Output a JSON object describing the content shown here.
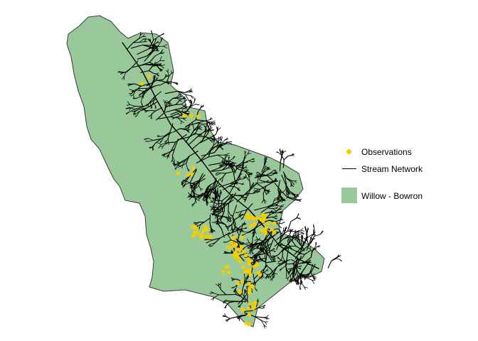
{
  "legend": {
    "observations": {
      "label": "Observations",
      "color": "#f5cc00"
    },
    "stream_network": {
      "label": "Stream Network",
      "color": "#000000"
    },
    "watershed": {
      "label": "Willow - Bowron",
      "color": "#99c99a"
    }
  },
  "colors": {
    "watershed_fill": "#99c99a",
    "stream": "#000000",
    "observation": "#f5cc00",
    "background": "#ffffff"
  }
}
